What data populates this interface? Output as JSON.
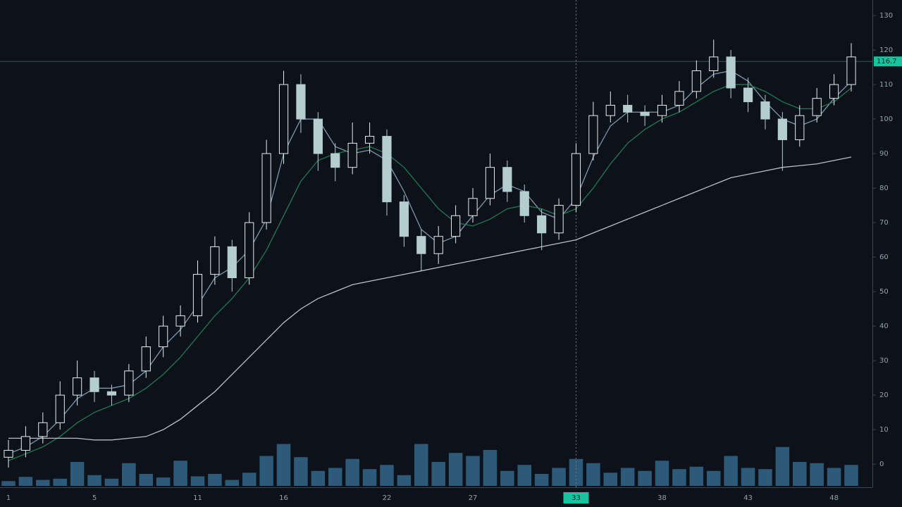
{
  "chart_data": {
    "type": "candlestick",
    "categories": [
      "1",
      null,
      null,
      null,
      null,
      "5",
      null,
      null,
      null,
      null,
      null,
      "11",
      null,
      null,
      null,
      null,
      "16",
      null,
      null,
      null,
      null,
      null,
      "22",
      null,
      null,
      null,
      null,
      "27",
      null,
      null,
      null,
      null,
      null,
      "33",
      null,
      null,
      null,
      null,
      "38",
      null,
      null,
      null,
      null,
      "43",
      null,
      null,
      null,
      null,
      "48",
      null
    ],
    "open": [
      2,
      4,
      8,
      12,
      20,
      25,
      21,
      20,
      27,
      34,
      40,
      43,
      55,
      63,
      54,
      70,
      90,
      110,
      100,
      90,
      86,
      93,
      95,
      76,
      66,
      61,
      66,
      72,
      77,
      86,
      79,
      72,
      67,
      75,
      90,
      101,
      104,
      102,
      101,
      104,
      108,
      114,
      118,
      109,
      105,
      100,
      94,
      101,
      106,
      110
    ],
    "high": [
      7,
      11,
      15,
      24,
      30,
      27,
      23,
      29,
      37,
      43,
      46,
      59,
      66,
      65,
      73,
      94,
      114,
      113,
      102,
      93,
      99,
      99,
      97,
      78,
      68,
      69,
      75,
      80,
      90,
      88,
      81,
      74,
      77,
      93,
      105,
      108,
      107,
      104,
      107,
      111,
      117,
      123,
      120,
      112,
      107,
      102,
      104,
      109,
      113,
      122
    ],
    "low": [
      -1,
      2,
      6,
      10,
      17,
      18,
      17,
      18,
      25,
      31,
      37,
      41,
      52,
      50,
      52,
      68,
      87,
      96,
      85,
      82,
      84,
      90,
      72,
      63,
      56,
      58,
      64,
      70,
      75,
      76,
      70,
      62,
      65,
      73,
      88,
      99,
      99,
      98,
      99,
      102,
      106,
      112,
      106,
      102,
      97,
      85,
      92,
      99,
      104,
      108
    ],
    "close": [
      4,
      8,
      12,
      20,
      25,
      21,
      20,
      27,
      34,
      40,
      43,
      55,
      63,
      54,
      70,
      90,
      110,
      100,
      90,
      86,
      93,
      95,
      76,
      66,
      61,
      66,
      72,
      77,
      86,
      79,
      72,
      67,
      75,
      90,
      101,
      104,
      102,
      101,
      104,
      108,
      114,
      118,
      109,
      105,
      100,
      94,
      101,
      106,
      110,
      118
    ],
    "up_color": "#e4eef0",
    "down_color": "#b4cdd0",
    "lines": [
      {
        "color": "#7d98ad",
        "values": [
          3,
          5,
          8,
          13,
          19,
          22,
          22,
          23,
          27,
          34,
          39,
          46,
          54,
          57,
          62,
          71,
          90,
          100,
          100,
          92,
          90,
          91,
          88,
          79,
          68,
          64,
          66,
          72,
          78,
          81,
          79,
          73,
          71,
          77,
          89,
          98,
          102,
          102,
          102,
          104,
          109,
          113,
          114,
          111,
          105,
          100,
          98,
          100,
          106,
          111
        ]
      },
      {
        "color": "#1f7a4f",
        "values": [
          1,
          3,
          5,
          8,
          12,
          15,
          17,
          19,
          22,
          26,
          31,
          37,
          43,
          48,
          54,
          62,
          72,
          82,
          88,
          90,
          91,
          92,
          90,
          86,
          80,
          74,
          70,
          69,
          71,
          74,
          75,
          74,
          72,
          74,
          80,
          87,
          93,
          97,
          100,
          102,
          105,
          108,
          110,
          110,
          108,
          105,
          103,
          103,
          105,
          109
        ]
      },
      {
        "color": "#b9c0c6",
        "values": [
          7.5,
          7.5,
          7.5,
          7.5,
          7.5,
          7,
          7,
          7.5,
          8,
          10,
          13,
          17,
          21,
          26,
          31,
          36,
          41,
          45,
          48,
          50,
          52,
          53,
          54,
          55,
          56,
          57,
          58,
          59,
          60,
          61,
          62,
          63,
          64,
          65,
          67,
          69,
          71,
          73,
          75,
          77,
          79,
          81,
          83,
          84,
          85,
          86,
          86.5,
          87,
          88,
          89
        ]
      }
    ],
    "volume": {
      "color": "#2d5a78",
      "ylim": [
        0,
        100
      ],
      "values": [
        8,
        15,
        10,
        12,
        40,
        18,
        12,
        38,
        20,
        14,
        42,
        16,
        20,
        10,
        22,
        50,
        70,
        48,
        25,
        30,
        45,
        28,
        35,
        18,
        70,
        40,
        55,
        50,
        60,
        25,
        35,
        20,
        30,
        45,
        38,
        22,
        30,
        25,
        42,
        28,
        32,
        25,
        50,
        30,
        28,
        65,
        40,
        38,
        30,
        35
      ]
    },
    "ylim": [
      -6.3,
      134.5
    ],
    "yticks": [
      0,
      10,
      20,
      30,
      40,
      50,
      60,
      70,
      80,
      90,
      100,
      110,
      120,
      130
    ],
    "price_line": 116.7,
    "crosshair_index": 33,
    "highlight_color": "#19c3a0"
  }
}
